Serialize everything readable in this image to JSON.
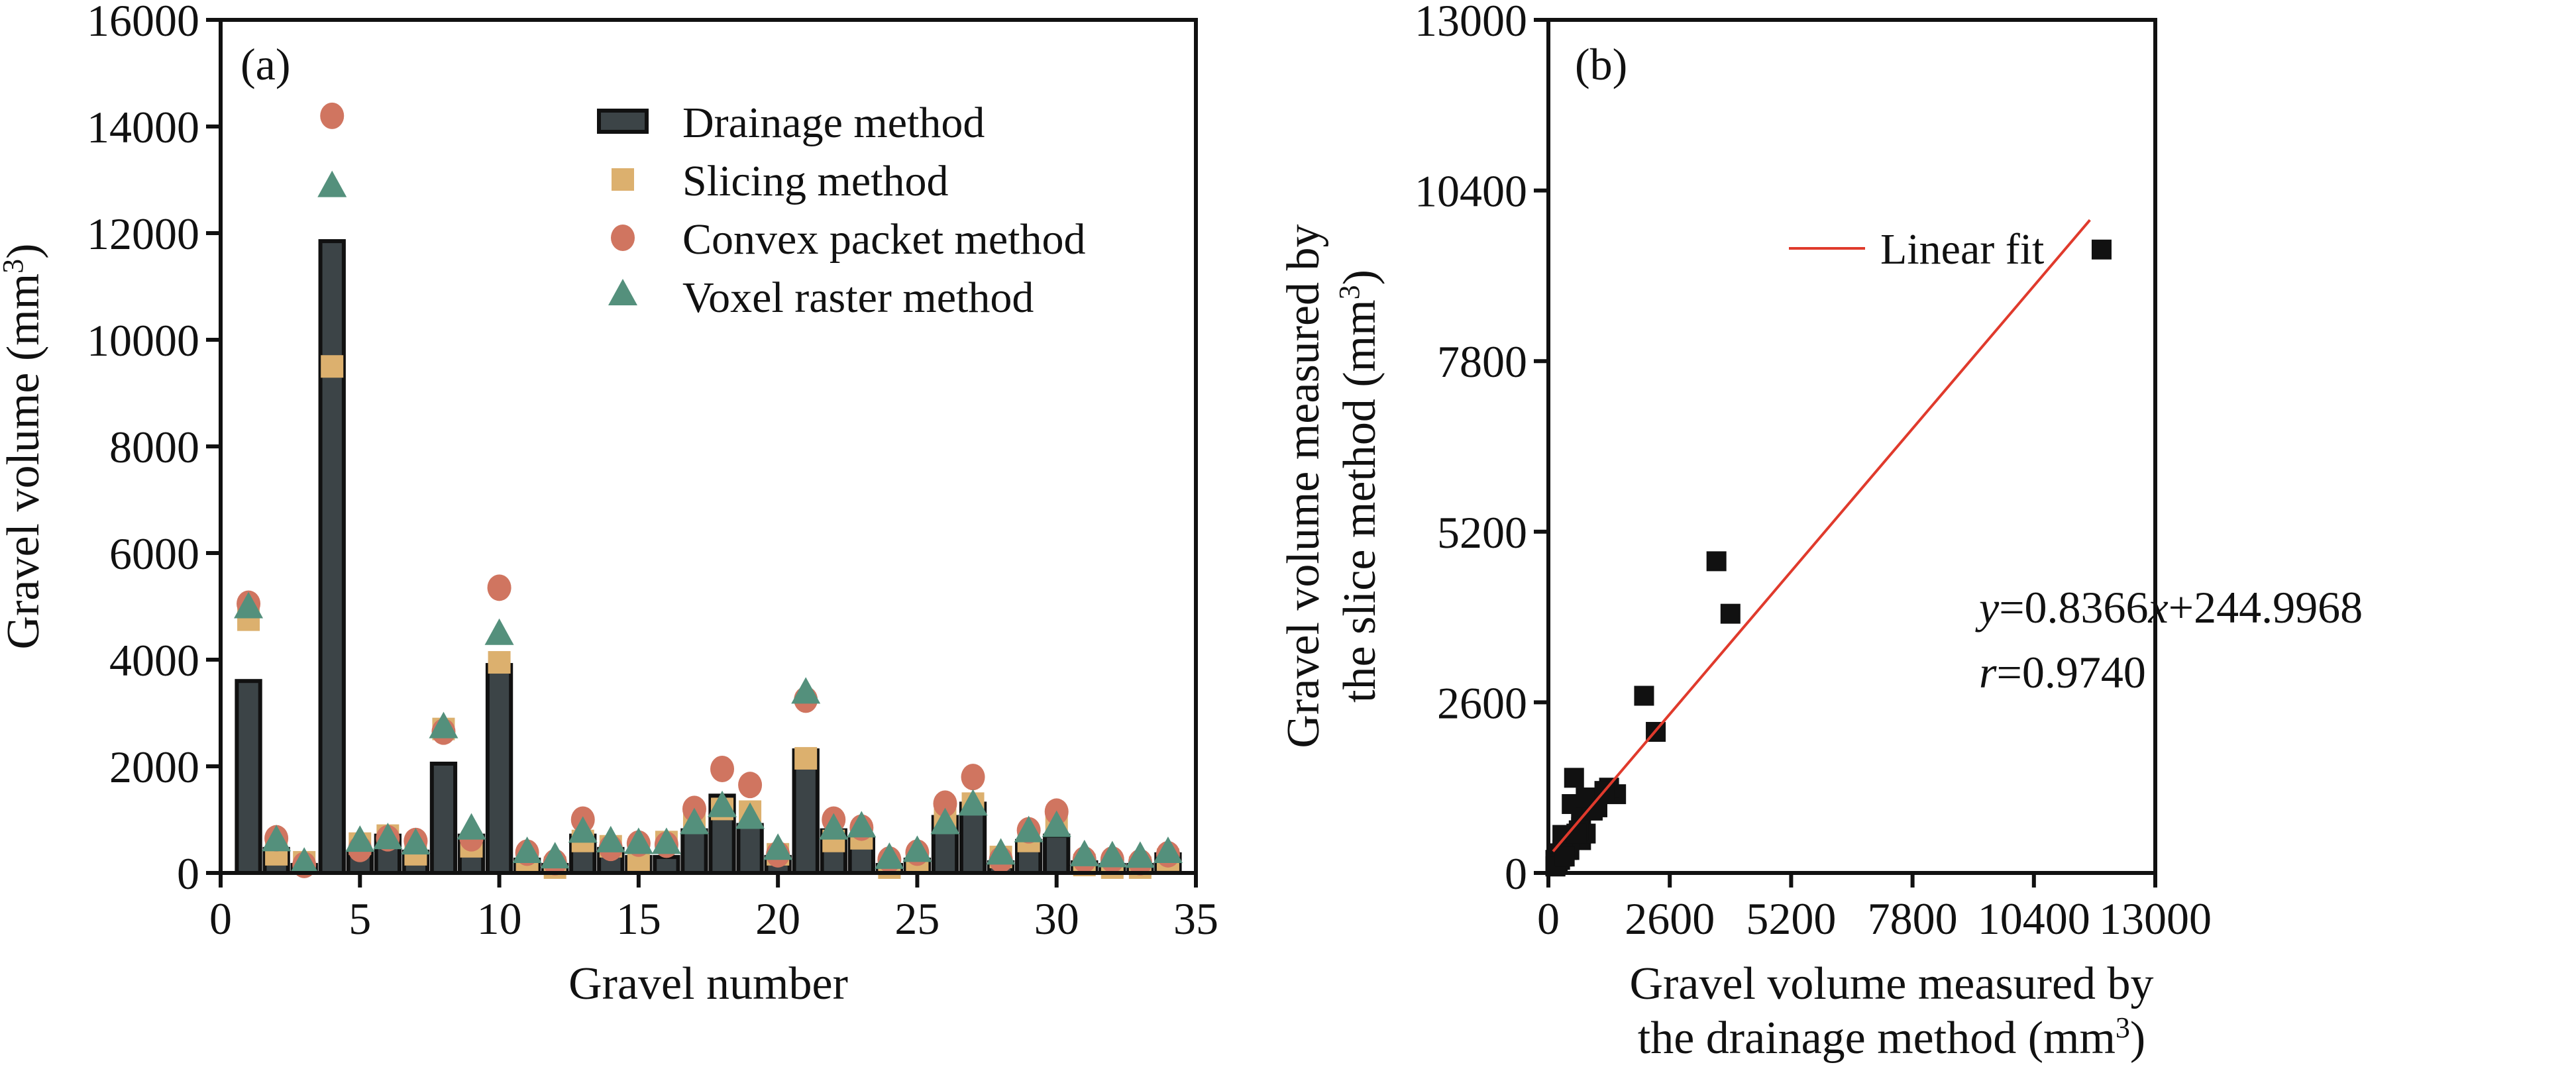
{
  "chart_data": [
    {
      "type": "bar",
      "panel_label": "(a)",
      "title": "",
      "xlabel": "Gravel number",
      "ylabel": "Gravel volume (mm",
      "ylabel_sup": "3",
      "ylabel_close": ")",
      "xlim": [
        0,
        35
      ],
      "ylim": [
        0,
        16000
      ],
      "xticks": [
        "0",
        "5",
        "10",
        "15",
        "20",
        "25",
        "30",
        "35"
      ],
      "xtick_values": [
        0,
        5,
        10,
        15,
        20,
        25,
        30,
        35
      ],
      "yticks": [
        "0",
        "2000",
        "4000",
        "6000",
        "8000",
        "10000",
        "12000",
        "14000",
        "16000"
      ],
      "ytick_values": [
        0,
        2000,
        4000,
        6000,
        8000,
        10000,
        12000,
        14000,
        16000
      ],
      "grid": false,
      "legend_position": "top-right",
      "categories": [
        1,
        2,
        3,
        4,
        5,
        6,
        7,
        8,
        9,
        10,
        11,
        12,
        13,
        14,
        15,
        16,
        17,
        18,
        19,
        20,
        21,
        22,
        23,
        24,
        25,
        26,
        27,
        28,
        29,
        30,
        31,
        32,
        33,
        34
      ],
      "series": [
        {
          "name": "Drainage method",
          "marker": "bar",
          "color": "#3c4447",
          "values": [
            3600,
            450,
            150,
            11850,
            400,
            700,
            400,
            2050,
            700,
            3900,
            250,
            150,
            700,
            450,
            300,
            300,
            800,
            1450,
            900,
            300,
            2300,
            800,
            650,
            150,
            250,
            1050,
            1300,
            200,
            600,
            700,
            200,
            150,
            150,
            350
          ]
        },
        {
          "name": "Slicing method",
          "marker": "square",
          "color": "#dcb06e",
          "values": [
            4750,
            350,
            200,
            9500,
            550,
            700,
            350,
            2700,
            500,
            3950,
            200,
            100,
            600,
            500,
            250,
            580,
            1000,
            1200,
            1150,
            350,
            2150,
            600,
            650,
            100,
            200,
            1000,
            1300,
            300,
            600,
            950,
            150,
            100,
            100,
            250
          ]
        },
        {
          "name": "Convex packet method",
          "marker": "circle",
          "color": "#d07560",
          "values": [
            5050,
            650,
            150,
            14200,
            450,
            650,
            600,
            2650,
            650,
            5350,
            380,
            200,
            1000,
            470,
            550,
            530,
            1200,
            1950,
            1650,
            350,
            3250,
            1000,
            850,
            250,
            380,
            1300,
            1800,
            250,
            800,
            1150,
            250,
            250,
            200,
            350
          ]
        },
        {
          "name": "Voxel raster method",
          "marker": "triangle",
          "color": "#54907c",
          "values": [
            4950,
            580,
            160,
            12850,
            570,
            620,
            520,
            2700,
            800,
            4450,
            360,
            260,
            740,
            560,
            530,
            530,
            900,
            1220,
            1000,
            420,
            3350,
            800,
            840,
            250,
            380,
            900,
            1250,
            330,
            750,
            850,
            300,
            280,
            270,
            360
          ]
        }
      ]
    },
    {
      "type": "scatter",
      "panel_label": "(b)",
      "title": "",
      "xlabel_line1": "Gravel volume measured by",
      "xlabel_line2": "the drainage method (mm",
      "xlabel_sup": "3",
      "xlabel_close": ")",
      "ylabel_line1": "Gravel volume measured by",
      "ylabel_line2": "the slice method (mm",
      "ylabel_sup": "3",
      "ylabel_close": ")",
      "xlim": [
        0,
        13000
      ],
      "ylim": [
        0,
        13000
      ],
      "xticks": [
        "0",
        "2600",
        "5200",
        "7800",
        "10400",
        "13000"
      ],
      "xtick_values": [
        0,
        2600,
        5200,
        7800,
        10400,
        13000
      ],
      "yticks": [
        "0",
        "2600",
        "5200",
        "7800",
        "10400",
        "13000"
      ],
      "ytick_values": [
        0,
        2600,
        5200,
        7800,
        10400,
        13000
      ],
      "grid": false,
      "legend_position": "top-center",
      "legend": [
        {
          "name": "Linear fit",
          "color": "#e03a2c"
        }
      ],
      "fit": {
        "slope": 0.8366,
        "intercept": 244.9968,
        "x_range": [
          100,
          11600
        ],
        "color": "#e03a2c"
      },
      "equation": {
        "y_var": "y",
        "eq_part1": "=0.8366",
        "x_var": "x",
        "eq_part2": "+244.9968",
        "r_var": "r",
        "r_value": "=0.9740"
      },
      "point_color": "#111111",
      "points": [
        [
          3600,
          4750
        ],
        [
          450,
          350
        ],
        [
          150,
          200
        ],
        [
          11850,
          9500
        ],
        [
          400,
          550
        ],
        [
          700,
          700
        ],
        [
          400,
          350
        ],
        [
          2050,
          2700
        ],
        [
          700,
          500
        ],
        [
          3900,
          3950
        ],
        [
          250,
          200
        ],
        [
          150,
          100
        ],
        [
          700,
          600
        ],
        [
          450,
          500
        ],
        [
          300,
          250
        ],
        [
          300,
          580
        ],
        [
          800,
          1000
        ],
        [
          1450,
          1200
        ],
        [
          900,
          1150
        ],
        [
          300,
          350
        ],
        [
          2300,
          2150
        ],
        [
          800,
          600
        ],
        [
          650,
          650
        ],
        [
          150,
          100
        ],
        [
          250,
          200
        ],
        [
          1050,
          1000
        ],
        [
          1300,
          1300
        ],
        [
          200,
          300
        ],
        [
          600,
          600
        ],
        [
          700,
          950
        ],
        [
          200,
          150
        ],
        [
          150,
          100
        ],
        [
          150,
          100
        ],
        [
          350,
          250
        ],
        [
          550,
          1450
        ],
        [
          850,
          1100
        ],
        [
          500,
          1050
        ],
        [
          950,
          950
        ],
        [
          800,
          1150
        ],
        [
          1200,
          1250
        ]
      ]
    }
  ]
}
